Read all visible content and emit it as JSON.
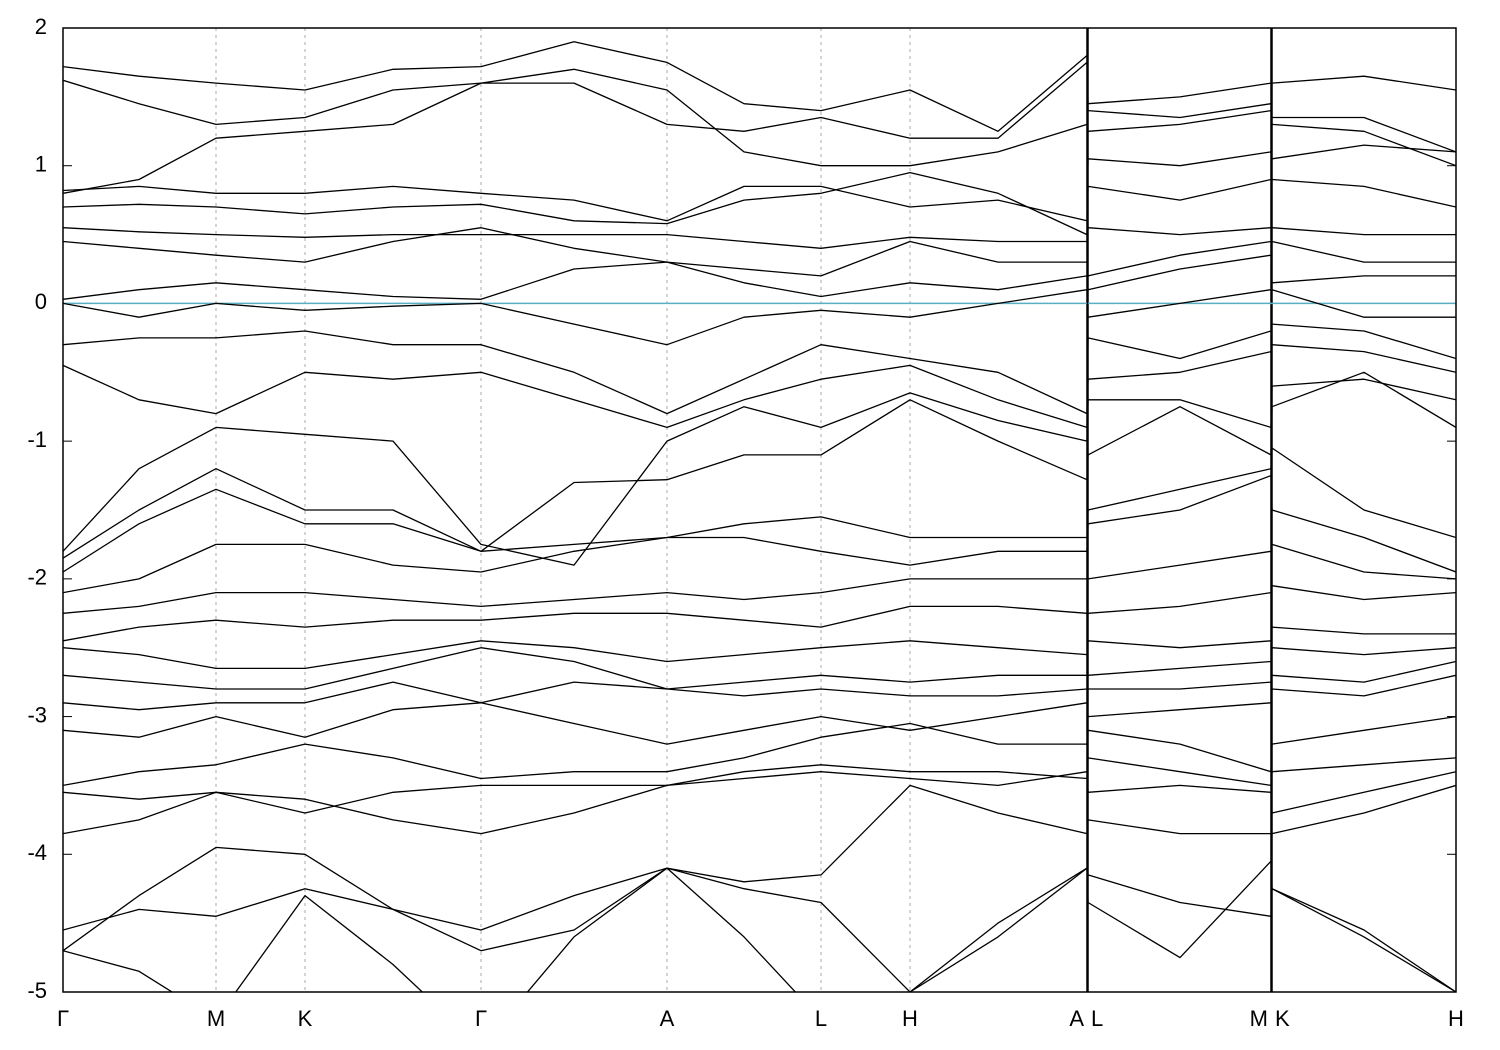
{
  "chart_data": {
    "type": "line",
    "line_color": "#000000",
    "hline": 0,
    "hline_color": "#5aaec4",
    "xlim": [
      0,
      1393
    ],
    "ylim": [
      -5,
      2
    ],
    "yticks": [
      -5,
      -4,
      -3,
      -2,
      -1,
      0,
      1,
      2
    ],
    "xticks": [
      {
        "value": 0,
        "label": "Γ"
      },
      {
        "value": 153,
        "label": "M"
      },
      {
        "value": 242,
        "label": "K"
      },
      {
        "value": 418,
        "label": "Γ"
      },
      {
        "value": 604,
        "label": "A"
      },
      {
        "value": 758,
        "label": "L"
      },
      {
        "value": 847,
        "label": "H"
      },
      {
        "value": 1024,
        "label": "A"
      },
      {
        "value": 1025,
        "label": "L"
      },
      {
        "value": 1208,
        "label": "M"
      },
      {
        "value": 1209,
        "label": "K"
      },
      {
        "value": 1393,
        "label": "H"
      }
    ],
    "x": [
      0,
      76,
      153,
      242,
      330,
      418,
      511,
      604,
      681,
      758,
      847,
      935,
      1024,
      1025,
      1117,
      1208,
      1209,
      1301,
      1393
    ],
    "series": [
      {
        "values": [
          1.72,
          1.65,
          1.6,
          1.55,
          1.7,
          1.72,
          1.9,
          1.75,
          1.45,
          1.4,
          1.55,
          1.25,
          1.8,
          1.45,
          1.5,
          1.6,
          1.6,
          1.65,
          1.55
        ]
      },
      {
        "values": [
          1.62,
          1.45,
          1.3,
          1.35,
          1.55,
          1.6,
          1.6,
          1.3,
          1.25,
          1.35,
          1.2,
          1.2,
          1.75,
          1.4,
          1.35,
          1.45,
          1.35,
          1.35,
          1.1
        ]
      },
      {
        "values": [
          0.8,
          0.9,
          1.2,
          1.25,
          1.3,
          1.6,
          1.7,
          1.55,
          1.1,
          1.0,
          1.0,
          1.1,
          1.3,
          1.25,
          1.3,
          1.4,
          1.3,
          1.25,
          1.0
        ]
      },
      {
        "values": [
          0.82,
          0.85,
          0.8,
          0.8,
          0.85,
          0.8,
          0.75,
          0.6,
          0.85,
          0.85,
          0.7,
          0.75,
          0.6,
          1.05,
          1.0,
          1.1,
          1.05,
          1.15,
          1.1
        ]
      },
      {
        "values": [
          0.7,
          0.72,
          0.7,
          0.65,
          0.7,
          0.72,
          0.6,
          0.58,
          0.75,
          0.8,
          0.95,
          0.8,
          0.5,
          0.85,
          0.75,
          0.9,
          0.9,
          0.85,
          0.7
        ]
      },
      {
        "values": [
          0.55,
          0.52,
          0.5,
          0.48,
          0.5,
          0.5,
          0.5,
          0.5,
          0.45,
          0.4,
          0.48,
          0.45,
          0.45,
          0.55,
          0.5,
          0.55,
          0.55,
          0.5,
          0.5
        ]
      },
      {
        "values": [
          0.45,
          0.4,
          0.35,
          0.3,
          0.45,
          0.55,
          0.4,
          0.3,
          0.25,
          0.2,
          0.45,
          0.3,
          0.3,
          0.2,
          0.35,
          0.45,
          0.45,
          0.3,
          0.3
        ]
      },
      {
        "values": [
          0.03,
          0.1,
          0.15,
          0.1,
          0.05,
          0.03,
          0.25,
          0.3,
          0.15,
          0.05,
          0.15,
          0.1,
          0.2,
          0.1,
          0.25,
          0.35,
          0.15,
          0.2,
          0.2
        ]
      },
      {
        "values": [
          0.0,
          -0.1,
          0.0,
          -0.05,
          -0.02,
          0.0,
          -0.15,
          -0.3,
          -0.1,
          -0.05,
          -0.1,
          0.0,
          0.1,
          -0.1,
          0.0,
          0.1,
          0.1,
          -0.1,
          -0.1
        ]
      },
      {
        "values": [
          -0.3,
          -0.25,
          -0.25,
          -0.2,
          -0.3,
          -0.3,
          -0.5,
          -0.8,
          -0.55,
          -0.3,
          -0.4,
          -0.5,
          -0.8,
          -0.25,
          -0.4,
          -0.2,
          -0.15,
          -0.2,
          -0.4
        ]
      },
      {
        "values": [
          -0.45,
          -0.7,
          -0.8,
          -0.5,
          -0.55,
          -0.5,
          -0.7,
          -0.9,
          -0.7,
          -0.55,
          -0.45,
          -0.7,
          -0.9,
          -0.55,
          -0.5,
          -0.35,
          -0.3,
          -0.35,
          -0.5
        ]
      },
      {
        "values": [
          -1.8,
          -1.2,
          -0.9,
          -0.95,
          -1.0,
          -1.75,
          -1.9,
          -1.0,
          -0.75,
          -0.9,
          -0.65,
          -0.85,
          -1.0,
          -0.7,
          -0.7,
          -0.9,
          -0.6,
          -0.55,
          -0.7
        ]
      },
      {
        "values": [
          -1.85,
          -1.5,
          -1.2,
          -1.5,
          -1.5,
          -1.8,
          -1.3,
          -1.28,
          -1.1,
          -1.1,
          -0.7,
          -1.0,
          -1.28,
          -1.1,
          -0.75,
          -1.1,
          -0.75,
          -0.5,
          -0.9
        ]
      },
      {
        "values": [
          -1.95,
          -1.6,
          -1.35,
          -1.6,
          -1.6,
          -1.8,
          -1.75,
          -1.7,
          -1.6,
          -1.55,
          -1.7,
          -1.7,
          -1.7,
          -1.5,
          -1.35,
          -1.2,
          -1.05,
          -1.5,
          -1.7
        ]
      },
      {
        "values": [
          -2.1,
          -2.0,
          -1.75,
          -1.75,
          -1.9,
          -1.95,
          -1.8,
          -1.7,
          -1.7,
          -1.8,
          -1.9,
          -1.8,
          -1.8,
          -1.6,
          -1.5,
          -1.25,
          -1.5,
          -1.7,
          -1.95
        ]
      },
      {
        "values": [
          -2.25,
          -2.2,
          -2.1,
          -2.1,
          -2.15,
          -2.2,
          -2.15,
          -2.1,
          -2.15,
          -2.1,
          -2.0,
          -2.0,
          -2.0,
          -2.0,
          -1.9,
          -1.8,
          -1.75,
          -1.95,
          -2.0
        ]
      },
      {
        "values": [
          -2.45,
          -2.35,
          -2.3,
          -2.35,
          -2.3,
          -2.3,
          -2.25,
          -2.25,
          -2.3,
          -2.35,
          -2.2,
          -2.2,
          -2.25,
          -2.25,
          -2.2,
          -2.1,
          -2.05,
          -2.15,
          -2.1
        ]
      },
      {
        "values": [
          -2.5,
          -2.55,
          -2.65,
          -2.65,
          -2.55,
          -2.45,
          -2.5,
          -2.6,
          -2.55,
          -2.5,
          -2.45,
          -2.5,
          -2.55,
          -2.45,
          -2.5,
          -2.45,
          -2.35,
          -2.4,
          -2.4
        ]
      },
      {
        "values": [
          -2.7,
          -2.75,
          -2.8,
          -2.8,
          -2.65,
          -2.5,
          -2.6,
          -2.8,
          -2.75,
          -2.7,
          -2.75,
          -2.7,
          -2.7,
          -2.7,
          -2.65,
          -2.6,
          -2.5,
          -2.55,
          -2.5
        ]
      },
      {
        "values": [
          -2.9,
          -2.95,
          -2.9,
          -2.9,
          -2.75,
          -2.9,
          -2.75,
          -2.8,
          -2.85,
          -2.8,
          -2.85,
          -2.85,
          -2.8,
          -2.8,
          -2.8,
          -2.75,
          -2.7,
          -2.75,
          -2.6
        ]
      },
      {
        "values": [
          -3.1,
          -3.15,
          -3.0,
          -3.15,
          -2.95,
          -2.9,
          -3.05,
          -3.2,
          -3.1,
          -3.0,
          -3.1,
          -3.0,
          -2.9,
          -3.0,
          -2.95,
          -2.9,
          -2.8,
          -2.85,
          -2.7
        ]
      },
      {
        "values": [
          -3.5,
          -3.4,
          -3.35,
          -3.2,
          -3.3,
          -3.45,
          -3.4,
          -3.4,
          -3.3,
          -3.15,
          -3.05,
          -3.2,
          -3.2,
          -3.1,
          -3.2,
          -3.4,
          -3.2,
          -3.1,
          -3.0
        ]
      },
      {
        "values": [
          -3.55,
          -3.6,
          -3.55,
          -3.7,
          -3.55,
          -3.5,
          -3.5,
          -3.5,
          -3.4,
          -3.35,
          -3.4,
          -3.4,
          -3.45,
          -3.3,
          -3.4,
          -3.5,
          -3.4,
          -3.35,
          -3.3
        ]
      },
      {
        "values": [
          -3.85,
          -3.75,
          -3.55,
          -3.6,
          -3.75,
          -3.85,
          -3.7,
          -3.5,
          -3.45,
          -3.4,
          -3.45,
          -3.5,
          -3.4,
          -3.55,
          -3.5,
          -3.55,
          -3.7,
          -3.55,
          -3.4
        ]
      },
      {
        "values": [
          -4.7,
          -4.3,
          -3.95,
          -4.0,
          -4.4,
          -4.55,
          -4.3,
          -4.1,
          -4.2,
          -4.15,
          -3.5,
          -3.7,
          -3.85,
          -3.75,
          -3.85,
          -3.85,
          -3.85,
          -3.7,
          -3.5
        ]
      },
      {
        "values": [
          -4.55,
          -4.4,
          -4.45,
          -4.25,
          -4.4,
          -4.7,
          -4.55,
          -4.1,
          -4.25,
          -4.35,
          -5.0,
          -4.6,
          -4.1,
          -4.15,
          -4.35,
          -4.45,
          -4.25,
          -4.6,
          -5.0
        ]
      },
      {
        "values": [
          -4.7,
          -4.85,
          -5.2,
          -4.3,
          -4.8,
          -5.4,
          -4.6,
          -4.1,
          -4.6,
          -5.2,
          -5.0,
          -4.5,
          -4.1,
          -4.35,
          -4.75,
          -4.05,
          -4.25,
          -4.55,
          -5.0
        ]
      }
    ]
  }
}
